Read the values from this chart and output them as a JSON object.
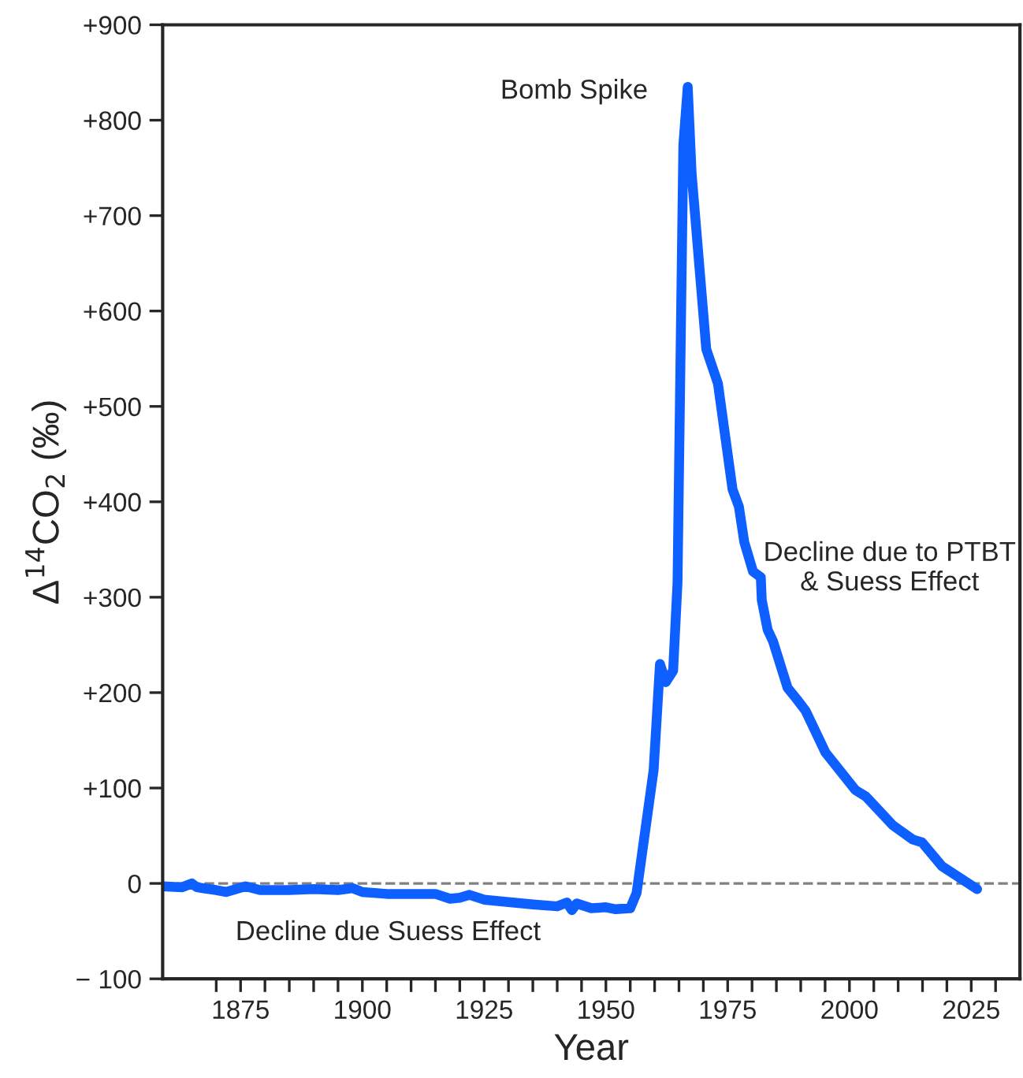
{
  "chart_data": {
    "type": "line",
    "xlabel": "Year",
    "ylabel": "Δ$^{14}$CO$_{2}$ (‰)",
    "x": [
      1859,
      1863,
      1865,
      1866,
      1870,
      1872,
      1876,
      1879,
      1885,
      1890,
      1895,
      1898,
      1900,
      1905,
      1915,
      1918,
      1920,
      1922,
      1925,
      1935,
      1940,
      1942,
      1943,
      1944,
      1947,
      1950,
      1952,
      1955,
      1956.3,
      1959.8,
      1961.1,
      1962.3,
      1963.8,
      1964.7,
      1965.9,
      1966.8,
      1967.6,
      1970.6,
      1973,
      1976,
      1977.3,
      1978.4,
      1980.2,
      1981.8,
      1982,
      1983.2,
      1984.3,
      1987.3,
      1989.2,
      1991,
      1995.1,
      2001.2,
      2003.4,
      2008.9,
      2013,
      2014.9,
      2019,
      2022.6,
      2026.2
    ],
    "series": [
      {
        "color": "#0d60ff",
        "values": [
          -3,
          -4,
          0,
          -4,
          -7,
          -9,
          -3,
          -7,
          -7,
          -6,
          -7,
          -5,
          -9,
          -11,
          -11,
          -16,
          -15,
          -12,
          -17,
          -22,
          -24,
          -20,
          -28,
          -21,
          -26,
          -25,
          -27,
          -26,
          -10,
          119,
          230,
          211,
          223,
          315,
          774,
          835,
          744,
          560,
          524,
          413,
          395,
          358,
          327,
          321,
          297,
          266,
          254,
          205,
          193,
          181,
          137,
          98,
          91,
          61,
          46,
          43,
          18,
          6,
          -6
        ]
      }
    ],
    "xlim": [
      1859,
      2035
    ],
    "ylim": [
      -100,
      900
    ],
    "xticks": [
      {
        "value": 1870,
        "label": null
      },
      1875,
      {
        "value": 1880,
        "label": null
      },
      {
        "value": 1885,
        "label": null
      },
      {
        "value": 1890,
        "label": null
      },
      {
        "value": 1895,
        "label": null
      },
      1900,
      {
        "value": 1905,
        "label": null
      },
      {
        "value": 1910,
        "label": null
      },
      {
        "value": 1915,
        "label": null
      },
      {
        "value": 1920,
        "label": null
      },
      1925,
      {
        "value": 1930,
        "label": null
      },
      {
        "value": 1935,
        "label": null
      },
      {
        "value": 1940,
        "label": null
      },
      {
        "value": 1945,
        "label": null
      },
      1950,
      {
        "value": 1955,
        "label": null
      },
      {
        "value": 1960,
        "label": null
      },
      {
        "value": 1965,
        "label": null
      },
      {
        "value": 1970,
        "label": null
      },
      1975,
      {
        "value": 1980,
        "label": null
      },
      {
        "value": 1985,
        "label": null
      },
      {
        "value": 1990,
        "label": null
      },
      {
        "value": 1995,
        "label": null
      },
      2000,
      {
        "value": 2005,
        "label": null
      },
      {
        "value": 2010,
        "label": null
      },
      {
        "value": 2015,
        "label": null
      },
      {
        "value": 2020,
        "label": null
      },
      2025,
      {
        "value": 2030,
        "label": null
      }
    ],
    "yticks": [
      {
        "value": -100,
        "label": "− 100"
      },
      0,
      {
        "value": 100,
        "label": "+100"
      },
      {
        "value": 200,
        "label": "+200"
      },
      {
        "value": 300,
        "label": "+300"
      },
      {
        "value": 400,
        "label": "+400"
      },
      {
        "value": 500,
        "label": "+500"
      },
      {
        "value": 600,
        "label": "+600"
      },
      {
        "value": 700,
        "label": "+700"
      },
      {
        "value": 800,
        "label": "+800"
      },
      {
        "value": 900,
        "label": "+900"
      }
    ],
    "ref_lines": [
      {
        "axis": "y",
        "value": 0,
        "color": "#808080",
        "line_style": "dashed"
      }
    ],
    "annotations": [
      "Bomb Spike",
      "Decline due to PTBT\n& Suess Effect",
      "Decline due Suess Effect"
    ],
    "grid": false,
    "legend": false,
    "marker": "none",
    "line_style": "solid"
  }
}
